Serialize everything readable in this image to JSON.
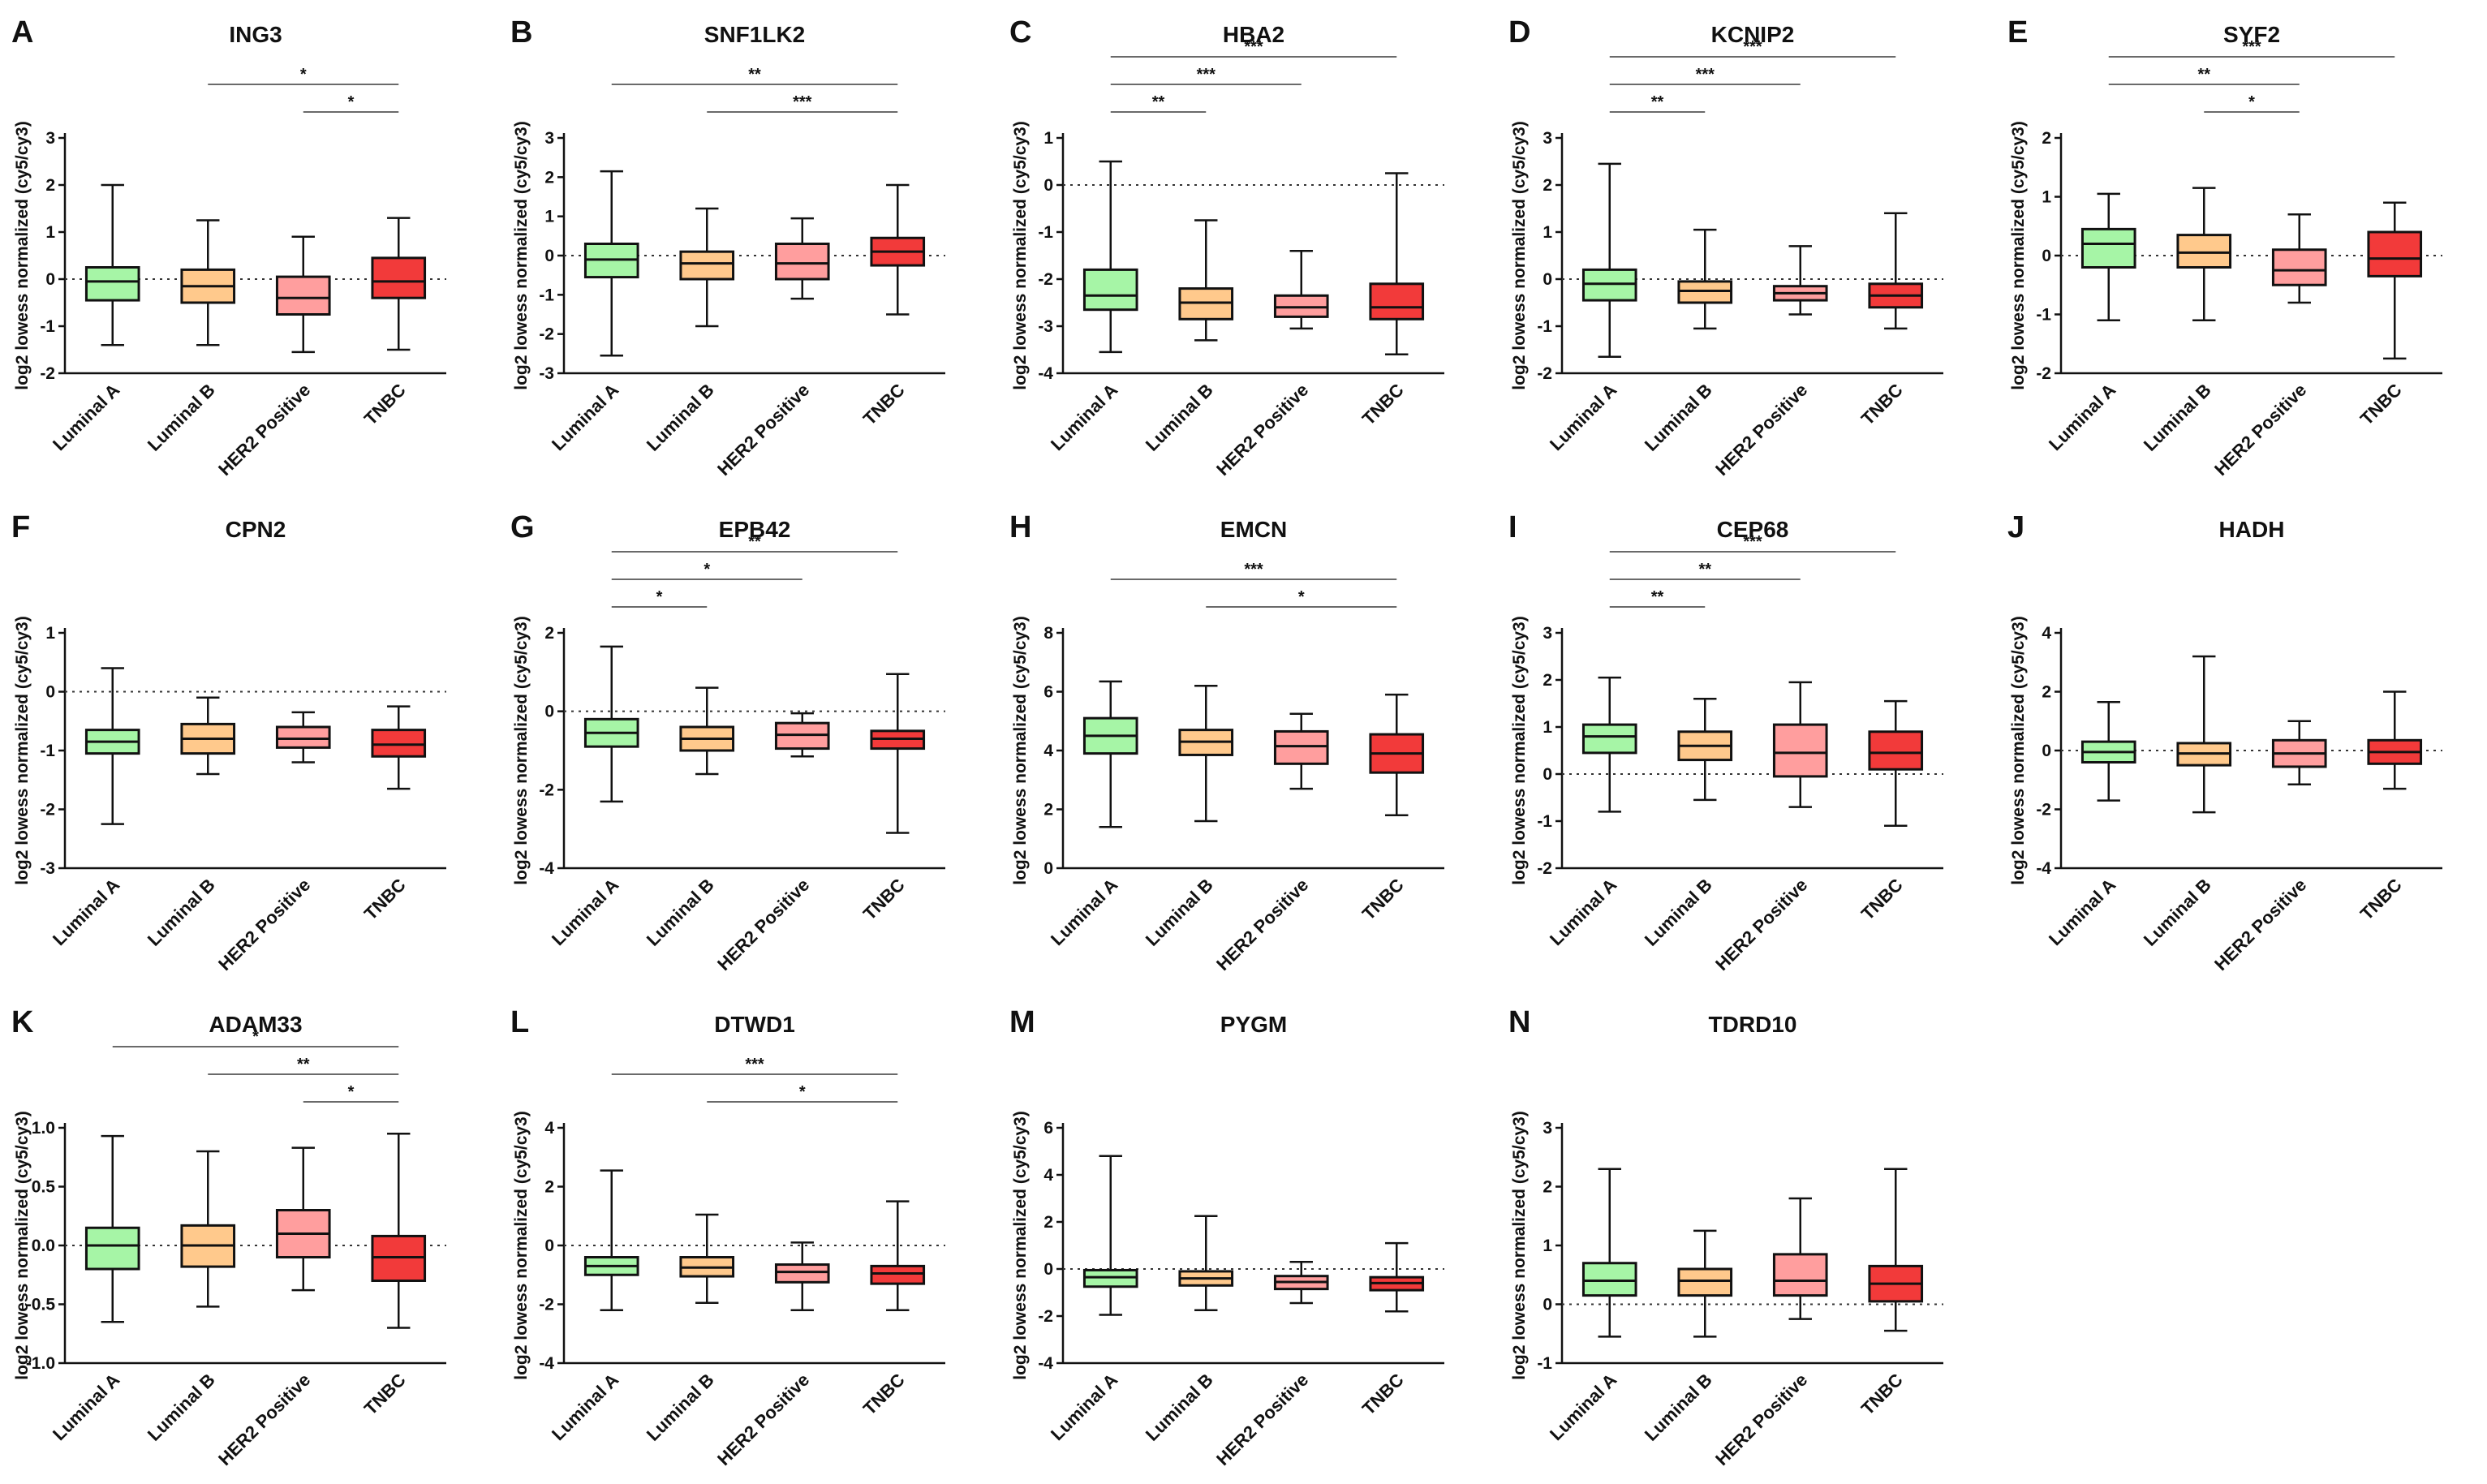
{
  "colors": {
    "Luminal A": "#a6f5a6",
    "Luminal B": "#ffc98c",
    "HER2 Positive": "#ff9e9e",
    "TNBC": "#f23a3a"
  },
  "chart_data": [
    {
      "type": "box",
      "letter": "A",
      "title": "ING3",
      "ylabel": "log2 lowess normalized (cy5/cy3)",
      "categories": [
        "Luminal A",
        "Luminal B",
        "HER2 Positive",
        "TNBC"
      ],
      "ylim": [
        -2,
        3
      ],
      "yticks": [
        -2,
        -1,
        0,
        1,
        2,
        3
      ],
      "tick_labels": [
        "-2",
        "-1",
        "0",
        "1",
        "2",
        "3"
      ],
      "ref_line": 0,
      "boxes": [
        {
          "min": -1.4,
          "q1": -0.45,
          "median": -0.05,
          "q3": 0.25,
          "max": 2.0
        },
        {
          "min": -1.4,
          "q1": -0.5,
          "median": -0.15,
          "q3": 0.2,
          "max": 1.25
        },
        {
          "min": -1.55,
          "q1": -0.75,
          "median": -0.4,
          "q3": 0.05,
          "max": 0.9
        },
        {
          "min": -1.5,
          "q1": -0.4,
          "median": -0.05,
          "q3": 0.45,
          "max": 1.3
        }
      ],
      "significance": [
        {
          "from": 1,
          "to": 3,
          "label": "*"
        },
        {
          "from": 2,
          "to": 3,
          "label": "*"
        }
      ]
    },
    {
      "type": "box",
      "letter": "B",
      "title": "SNF1LK2",
      "ylabel": "log2 lowess normalized (cy5/cy3)",
      "categories": [
        "Luminal A",
        "Luminal B",
        "HER2 Positive",
        "TNBC"
      ],
      "ylim": [
        -3,
        3
      ],
      "yticks": [
        -3,
        -2,
        -1,
        0,
        1,
        2,
        3
      ],
      "tick_labels": [
        "-3",
        "-2",
        "-1",
        "0",
        "1",
        "2",
        "3"
      ],
      "ref_line": 0,
      "boxes": [
        {
          "min": -2.55,
          "q1": -0.55,
          "median": -0.1,
          "q3": 0.3,
          "max": 2.15
        },
        {
          "min": -1.8,
          "q1": -0.6,
          "median": -0.2,
          "q3": 0.1,
          "max": 1.2
        },
        {
          "min": -1.1,
          "q1": -0.6,
          "median": -0.2,
          "q3": 0.3,
          "max": 0.95
        },
        {
          "min": -1.5,
          "q1": -0.25,
          "median": 0.1,
          "q3": 0.45,
          "max": 1.8
        }
      ],
      "significance": [
        {
          "from": 0,
          "to": 3,
          "label": "**"
        },
        {
          "from": 1,
          "to": 3,
          "label": "***"
        }
      ]
    },
    {
      "type": "box",
      "letter": "C",
      "title": "HBA2",
      "ylabel": "log2 lowess normalized (cy5/cy3)",
      "categories": [
        "Luminal A",
        "Luminal B",
        "HER2 Positive",
        "TNBC"
      ],
      "ylim": [
        -4,
        1
      ],
      "yticks": [
        -4,
        -3,
        -2,
        -1,
        0,
        1
      ],
      "tick_labels": [
        "-4",
        "-3",
        "-2",
        "-1",
        "0",
        "1"
      ],
      "ref_line": 0,
      "boxes": [
        {
          "min": -3.55,
          "q1": -2.65,
          "median": -2.35,
          "q3": -1.8,
          "max": 0.5
        },
        {
          "min": -3.3,
          "q1": -2.85,
          "median": -2.5,
          "q3": -2.2,
          "max": -0.75
        },
        {
          "min": -3.05,
          "q1": -2.8,
          "median": -2.6,
          "q3": -2.35,
          "max": -1.4
        },
        {
          "min": -3.6,
          "q1": -2.85,
          "median": -2.6,
          "q3": -2.1,
          "max": 0.25
        }
      ],
      "significance": [
        {
          "from": 0,
          "to": 3,
          "label": "***"
        },
        {
          "from": 0,
          "to": 2,
          "label": "***"
        },
        {
          "from": 0,
          "to": 1,
          "label": "**"
        }
      ]
    },
    {
      "type": "box",
      "letter": "D",
      "title": "KCNIP2",
      "ylabel": "log2 lowess normalized (cy5/cy3)",
      "categories": [
        "Luminal A",
        "Luminal B",
        "HER2 Positive",
        "TNBC"
      ],
      "ylim": [
        -2,
        3
      ],
      "yticks": [
        -2,
        -1,
        0,
        1,
        2,
        3
      ],
      "tick_labels": [
        "-2",
        "-1",
        "0",
        "1",
        "2",
        "3"
      ],
      "ref_line": 0,
      "boxes": [
        {
          "min": -1.65,
          "q1": -0.45,
          "median": -0.1,
          "q3": 0.2,
          "max": 2.45
        },
        {
          "min": -1.05,
          "q1": -0.5,
          "median": -0.25,
          "q3": -0.05,
          "max": 1.05
        },
        {
          "min": -0.75,
          "q1": -0.45,
          "median": -0.3,
          "q3": -0.15,
          "max": 0.7
        },
        {
          "min": -1.05,
          "q1": -0.6,
          "median": -0.35,
          "q3": -0.1,
          "max": 1.4
        }
      ],
      "significance": [
        {
          "from": 0,
          "to": 3,
          "label": "***"
        },
        {
          "from": 0,
          "to": 2,
          "label": "***"
        },
        {
          "from": 0,
          "to": 1,
          "label": "**"
        }
      ]
    },
    {
      "type": "box",
      "letter": "E",
      "title": "SYF2",
      "ylabel": "log2 lowess normalized (cy5/cy3)",
      "categories": [
        "Luminal A",
        "Luminal B",
        "HER2 Positive",
        "TNBC"
      ],
      "ylim": [
        -2,
        2
      ],
      "yticks": [
        -2,
        -1,
        0,
        1,
        2
      ],
      "tick_labels": [
        "-2",
        "-1",
        "0",
        "1",
        "2"
      ],
      "ref_line": 0,
      "boxes": [
        {
          "min": -1.1,
          "q1": -0.2,
          "median": 0.2,
          "q3": 0.45,
          "max": 1.05
        },
        {
          "min": -1.1,
          "q1": -0.2,
          "median": 0.05,
          "q3": 0.35,
          "max": 1.15
        },
        {
          "min": -0.8,
          "q1": -0.5,
          "median": -0.25,
          "q3": 0.1,
          "max": 0.7
        },
        {
          "min": -1.75,
          "q1": -0.35,
          "median": -0.05,
          "q3": 0.4,
          "max": 0.9
        }
      ],
      "significance": [
        {
          "from": 0,
          "to": 3,
          "label": "***"
        },
        {
          "from": 0,
          "to": 2,
          "label": "**"
        },
        {
          "from": 1,
          "to": 2,
          "label": "*"
        }
      ]
    },
    {
      "type": "box",
      "letter": "F",
      "title": "CPN2",
      "ylabel": "log2 lowess normalized (cy5/cy3)",
      "categories": [
        "Luminal A",
        "Luminal B",
        "HER2 Positive",
        "TNBC"
      ],
      "ylim": [
        -3,
        1
      ],
      "yticks": [
        -3,
        -2,
        -1,
        0,
        1
      ],
      "tick_labels": [
        "-3",
        "-2",
        "-1",
        "0",
        "1"
      ],
      "ref_line": 0,
      "boxes": [
        {
          "min": -2.25,
          "q1": -1.05,
          "median": -0.85,
          "q3": -0.65,
          "max": 0.4
        },
        {
          "min": -1.4,
          "q1": -1.05,
          "median": -0.8,
          "q3": -0.55,
          "max": -0.1
        },
        {
          "min": -1.2,
          "q1": -0.95,
          "median": -0.8,
          "q3": -0.6,
          "max": -0.35
        },
        {
          "min": -1.65,
          "q1": -1.1,
          "median": -0.9,
          "q3": -0.65,
          "max": -0.25
        }
      ],
      "significance": []
    },
    {
      "type": "box",
      "letter": "G",
      "title": "EPB42",
      "ylabel": "log2 lowess normalized (cy5/cy3)",
      "categories": [
        "Luminal A",
        "Luminal B",
        "HER2 Positive",
        "TNBC"
      ],
      "ylim": [
        -4,
        2
      ],
      "yticks": [
        -4,
        -2,
        0,
        2
      ],
      "tick_labels": [
        "-4",
        "-2",
        "0",
        "2"
      ],
      "ref_line": 0,
      "boxes": [
        {
          "min": -2.3,
          "q1": -0.9,
          "median": -0.55,
          "q3": -0.2,
          "max": 1.65
        },
        {
          "min": -1.6,
          "q1": -1.0,
          "median": -0.7,
          "q3": -0.4,
          "max": 0.6
        },
        {
          "min": -1.15,
          "q1": -0.95,
          "median": -0.6,
          "q3": -0.3,
          "max": -0.05
        },
        {
          "min": -3.1,
          "q1": -0.95,
          "median": -0.7,
          "q3": -0.5,
          "max": 0.95
        }
      ],
      "significance": [
        {
          "from": 0,
          "to": 3,
          "label": "**"
        },
        {
          "from": 0,
          "to": 2,
          "label": "*"
        },
        {
          "from": 0,
          "to": 1,
          "label": "*"
        }
      ]
    },
    {
      "type": "box",
      "letter": "H",
      "title": "EMCN",
      "ylabel": "log2 lowess normalized (cy5/cy3)",
      "categories": [
        "Luminal A",
        "Luminal B",
        "HER2 Positive",
        "TNBC"
      ],
      "ylim": [
        0,
        8
      ],
      "yticks": [
        0,
        2,
        4,
        6,
        8
      ],
      "tick_labels": [
        "0",
        "2",
        "4",
        "6",
        "8"
      ],
      "ref_line": null,
      "boxes": [
        {
          "min": 1.4,
          "q1": 3.9,
          "median": 4.5,
          "q3": 5.1,
          "max": 6.35
        },
        {
          "min": 1.6,
          "q1": 3.85,
          "median": 4.3,
          "q3": 4.7,
          "max": 6.2
        },
        {
          "min": 2.7,
          "q1": 3.55,
          "median": 4.15,
          "q3": 4.65,
          "max": 5.25
        },
        {
          "min": 1.8,
          "q1": 3.25,
          "median": 3.9,
          "q3": 4.55,
          "max": 5.9
        }
      ],
      "significance": [
        {
          "from": 0,
          "to": 3,
          "label": "***"
        },
        {
          "from": 1,
          "to": 3,
          "label": "*"
        }
      ]
    },
    {
      "type": "box",
      "letter": "I",
      "title": "CEP68",
      "ylabel": "log2 lowess normalized (cy5/cy3)",
      "categories": [
        "Luminal A",
        "Luminal B",
        "HER2 Positive",
        "TNBC"
      ],
      "ylim": [
        -2,
        3
      ],
      "yticks": [
        -2,
        -1,
        0,
        1,
        2,
        3
      ],
      "tick_labels": [
        "-2",
        "-1",
        "0",
        "1",
        "2",
        "3"
      ],
      "ref_line": 0,
      "boxes": [
        {
          "min": -0.8,
          "q1": 0.45,
          "median": 0.8,
          "q3": 1.05,
          "max": 2.05
        },
        {
          "min": -0.55,
          "q1": 0.3,
          "median": 0.6,
          "q3": 0.9,
          "max": 1.6
        },
        {
          "min": -0.7,
          "q1": -0.05,
          "median": 0.45,
          "q3": 1.05,
          "max": 1.95
        },
        {
          "min": -1.1,
          "q1": 0.1,
          "median": 0.45,
          "q3": 0.9,
          "max": 1.55
        }
      ],
      "significance": [
        {
          "from": 0,
          "to": 3,
          "label": "***"
        },
        {
          "from": 0,
          "to": 2,
          "label": "**"
        },
        {
          "from": 0,
          "to": 1,
          "label": "**"
        }
      ]
    },
    {
      "type": "box",
      "letter": "J",
      "title": "HADH",
      "ylabel": "log2 lowess normalized (cy5/cy3)",
      "categories": [
        "Luminal A",
        "Luminal B",
        "HER2 Positive",
        "TNBC"
      ],
      "ylim": [
        -4,
        4
      ],
      "yticks": [
        -4,
        -2,
        0,
        2,
        4
      ],
      "tick_labels": [
        "-4",
        "-2",
        "0",
        "2",
        "4"
      ],
      "ref_line": 0,
      "boxes": [
        {
          "min": -1.7,
          "q1": -0.4,
          "median": -0.05,
          "q3": 0.3,
          "max": 1.65
        },
        {
          "min": -2.1,
          "q1": -0.5,
          "median": -0.1,
          "q3": 0.25,
          "max": 3.2
        },
        {
          "min": -1.15,
          "q1": -0.55,
          "median": -0.1,
          "q3": 0.35,
          "max": 1.0
        },
        {
          "min": -1.3,
          "q1": -0.45,
          "median": -0.05,
          "q3": 0.35,
          "max": 2.0
        }
      ],
      "significance": []
    },
    {
      "type": "box",
      "letter": "K",
      "title": "ADAM33",
      "ylabel": "log2 lowess normalized (cy5/cy3)",
      "categories": [
        "Luminal A",
        "Luminal B",
        "HER2 Positive",
        "TNBC"
      ],
      "ylim": [
        -1,
        1
      ],
      "yticks": [
        -1,
        -0.5,
        0,
        0.5,
        1
      ],
      "tick_labels": [
        "-1.0",
        "-0.5",
        "0.0",
        "0.5",
        "1.0"
      ],
      "ref_line": 0,
      "boxes": [
        {
          "min": -0.65,
          "q1": -0.2,
          "median": 0.0,
          "q3": 0.15,
          "max": 0.93
        },
        {
          "min": -0.52,
          "q1": -0.18,
          "median": 0.0,
          "q3": 0.17,
          "max": 0.8
        },
        {
          "min": -0.38,
          "q1": -0.1,
          "median": 0.1,
          "q3": 0.3,
          "max": 0.83
        },
        {
          "min": -0.7,
          "q1": -0.3,
          "median": -0.1,
          "q3": 0.08,
          "max": 0.95
        }
      ],
      "significance": [
        {
          "from": 0,
          "to": 3,
          "label": "*"
        },
        {
          "from": 1,
          "to": 3,
          "label": "**"
        },
        {
          "from": 2,
          "to": 3,
          "label": "*"
        }
      ]
    },
    {
      "type": "box",
      "letter": "L",
      "title": "DTWD1",
      "ylabel": "log2 lowess normalized (cy5/cy3)",
      "categories": [
        "Luminal A",
        "Luminal B",
        "HER2 Positive",
        "TNBC"
      ],
      "ylim": [
        -4,
        4
      ],
      "yticks": [
        -4,
        -2,
        0,
        2,
        4
      ],
      "tick_labels": [
        "-4",
        "-2",
        "0",
        "2",
        "4"
      ],
      "ref_line": 0,
      "boxes": [
        {
          "min": -2.2,
          "q1": -1.0,
          "median": -0.7,
          "q3": -0.4,
          "max": 2.55
        },
        {
          "min": -1.95,
          "q1": -1.05,
          "median": -0.75,
          "q3": -0.4,
          "max": 1.05
        },
        {
          "min": -2.2,
          "q1": -1.25,
          "median": -0.9,
          "q3": -0.65,
          "max": 0.1
        },
        {
          "min": -2.2,
          "q1": -1.3,
          "median": -0.95,
          "q3": -0.7,
          "max": 1.5
        }
      ],
      "significance": [
        {
          "from": 0,
          "to": 3,
          "label": "***"
        },
        {
          "from": 1,
          "to": 3,
          "label": "*"
        }
      ]
    },
    {
      "type": "box",
      "letter": "M",
      "title": "PYGM",
      "ylabel": "log2 lowess normalized (cy5/cy3)",
      "categories": [
        "Luminal A",
        "Luminal B",
        "HER2 Positive",
        "TNBC"
      ],
      "ylim": [
        -4,
        6
      ],
      "yticks": [
        -4,
        -2,
        0,
        2,
        4,
        6
      ],
      "tick_labels": [
        "-4",
        "-2",
        "0",
        "2",
        "4",
        "6"
      ],
      "ref_line": 0,
      "boxes": [
        {
          "min": -1.95,
          "q1": -0.75,
          "median": -0.35,
          "q3": -0.05,
          "max": 4.8
        },
        {
          "min": -1.75,
          "q1": -0.7,
          "median": -0.4,
          "q3": -0.1,
          "max": 2.25
        },
        {
          "min": -1.45,
          "q1": -0.85,
          "median": -0.55,
          "q3": -0.3,
          "max": 0.3
        },
        {
          "min": -1.8,
          "q1": -0.9,
          "median": -0.6,
          "q3": -0.35,
          "max": 1.1
        }
      ],
      "significance": []
    },
    {
      "type": "box",
      "letter": "N",
      "title": "TDRD10",
      "ylabel": "log2 lowess normalized (cy5/cy3)",
      "categories": [
        "Luminal A",
        "Luminal B",
        "HER2 Positive",
        "TNBC"
      ],
      "ylim": [
        -1,
        3
      ],
      "yticks": [
        -1,
        0,
        1,
        2,
        3
      ],
      "tick_labels": [
        "-1",
        "0",
        "1",
        "2",
        "3"
      ],
      "ref_line": 0,
      "boxes": [
        {
          "min": -0.55,
          "q1": 0.15,
          "median": 0.4,
          "q3": 0.7,
          "max": 2.3
        },
        {
          "min": -0.55,
          "q1": 0.15,
          "median": 0.4,
          "q3": 0.6,
          "max": 1.25
        },
        {
          "min": -0.25,
          "q1": 0.15,
          "median": 0.4,
          "q3": 0.85,
          "max": 1.8
        },
        {
          "min": -0.45,
          "q1": 0.05,
          "median": 0.35,
          "q3": 0.65,
          "max": 2.3
        }
      ],
      "significance": []
    }
  ]
}
